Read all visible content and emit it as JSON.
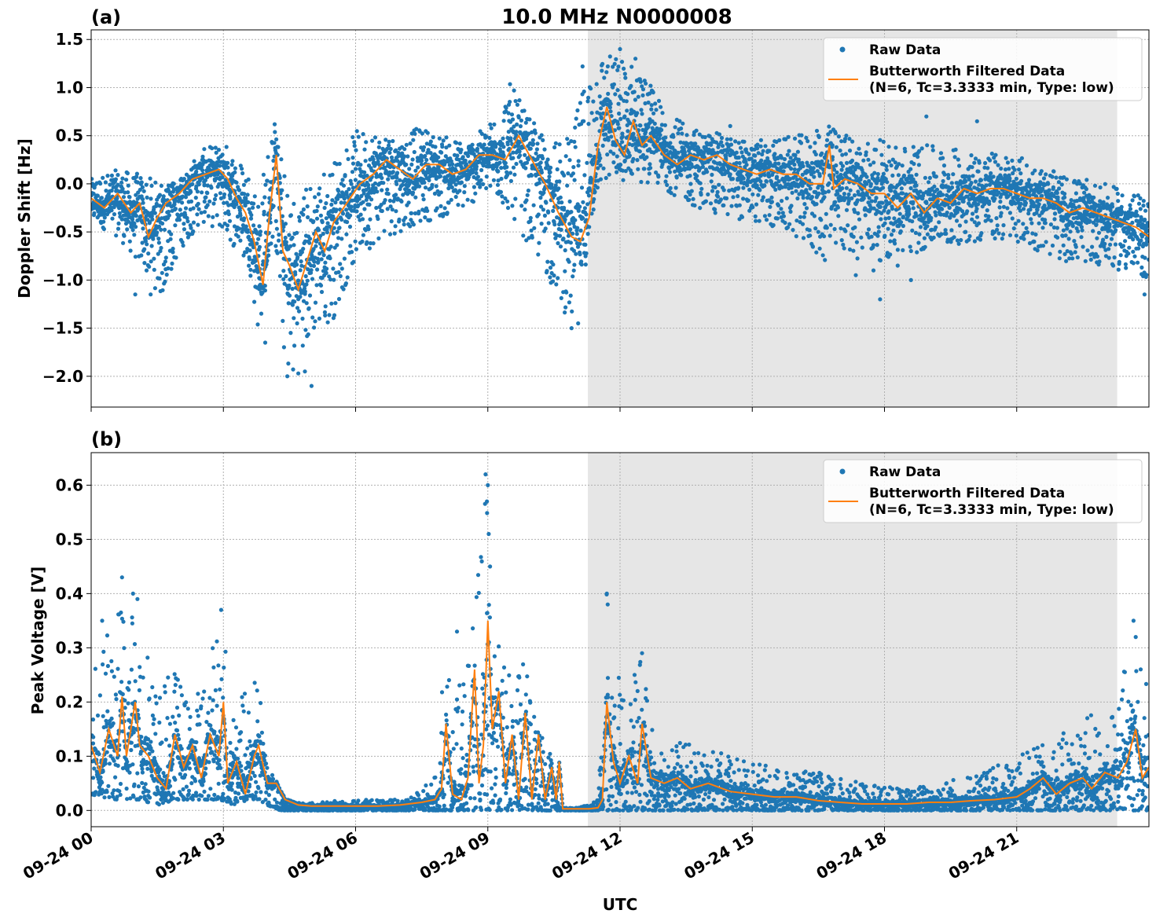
{
  "figure": {
    "title": "10.0 MHz N0000008",
    "xlabel": "UTC"
  },
  "colors": {
    "raw": "#1f77b4",
    "filtered": "#ff7f0e",
    "shade": "#e6e6e6",
    "grid": "#b0b0b0"
  },
  "chart_data": [
    {
      "type": "scatter",
      "panel_label": "(a)",
      "title": "10.0 MHz N0000008",
      "ylabel": "Doppler Shift [Hz]",
      "xlabel": "",
      "x_unit": "hours since 09-24 00 UTC",
      "xlim": [
        0,
        24
      ],
      "ylim": [
        -2.32,
        1.6
      ],
      "yticks": [
        1.5,
        1.0,
        0.5,
        0.0,
        -0.5,
        -1.0,
        -1.5,
        -2.0
      ],
      "ytick_labels": [
        "1.5",
        "1.0",
        "0.5",
        "0.0",
        "−0.5",
        "−1.0",
        "−1.5",
        "−2.0"
      ],
      "xticks": [
        0,
        3,
        6,
        9,
        12,
        15,
        18,
        21
      ],
      "xtick_labels": [
        "",
        "",
        "",
        "",
        "",
        "",
        "",
        ""
      ],
      "grid": true,
      "shaded_interval": [
        11.27,
        23.28
      ],
      "legend": {
        "placement": "top-right",
        "entries": [
          {
            "label": "Raw Data",
            "kind": "marker"
          },
          {
            "label": "Butterworth Filtered Data",
            "label2": "(N=6, Tc=3.3333 min, Type: low)",
            "kind": "line"
          }
        ]
      },
      "series": [
        {
          "name": "Raw Data",
          "kind": "band",
          "x": [
            0,
            0.6,
            1.2,
            1.6,
            2.0,
            2.5,
            3.0,
            3.6,
            3.8,
            4.15,
            4.4,
            4.6,
            5.0,
            5.5,
            6.0,
            6.5,
            7.0,
            7.5,
            8.0,
            8.5,
            9.0,
            9.5,
            10.0,
            10.5,
            10.9,
            11.2,
            11.5,
            11.8,
            12.2,
            12.6,
            13.0,
            13.5,
            14.0,
            15.0,
            16.0,
            16.8,
            17.0,
            17.5,
            18.0,
            19.0,
            20.0,
            21.0,
            22.0,
            23.0,
            24.0
          ],
          "hi": [
            0.05,
            0.15,
            0.1,
            0.0,
            0.05,
            0.35,
            0.45,
            0.15,
            -0.1,
            0.7,
            0.1,
            -0.1,
            0.05,
            0.25,
            0.55,
            0.6,
            0.5,
            0.6,
            0.5,
            0.45,
            0.6,
            1.05,
            0.65,
            0.45,
            0.5,
            1.1,
            1.4,
            1.35,
            1.3,
            1.1,
            0.8,
            0.6,
            0.55,
            0.45,
            0.5,
            0.6,
            0.55,
            0.5,
            0.45,
            0.4,
            0.35,
            0.3,
            0.1,
            0.0,
            -0.15
          ],
          "lo": [
            -0.4,
            -0.55,
            -0.9,
            -1.2,
            -0.7,
            -0.4,
            -0.5,
            -0.9,
            -1.6,
            -0.5,
            -1.9,
            -2.1,
            -1.6,
            -1.4,
            -0.8,
            -0.6,
            -0.5,
            -0.4,
            -0.35,
            -0.25,
            -0.1,
            -0.3,
            -0.7,
            -1.1,
            -1.5,
            -0.9,
            -0.1,
            -0.05,
            0.05,
            0.0,
            -0.05,
            -0.2,
            -0.3,
            -0.4,
            -0.55,
            -0.9,
            -0.7,
            -0.8,
            -0.8,
            -0.7,
            -0.6,
            -0.6,
            -0.8,
            -0.85,
            -1.0
          ],
          "outliers": [
            [
              1.0,
              -1.15
            ],
            [
              1.35,
              -1.15
            ],
            [
              3.95,
              -1.65
            ],
            [
              4.45,
              -2.0
            ],
            [
              4.85,
              -1.95
            ],
            [
              5.0,
              -2.1
            ],
            [
              10.9,
              -1.5
            ],
            [
              11.05,
              -1.45
            ],
            [
              11.15,
              1.22
            ],
            [
              12.0,
              1.4
            ],
            [
              12.35,
              1.3
            ],
            [
              14.5,
              0.6
            ],
            [
              16.5,
              0.5
            ],
            [
              17.35,
              -0.95
            ],
            [
              17.75,
              -0.9
            ],
            [
              17.9,
              -1.2
            ],
            [
              18.3,
              -0.85
            ],
            [
              18.6,
              -1.0
            ],
            [
              18.95,
              0.7
            ],
            [
              20.1,
              0.65
            ],
            [
              23.9,
              -1.15
            ]
          ]
        },
        {
          "name": "Butterworth Filtered Data",
          "kind": "line",
          "x": [
            0,
            0.3,
            0.6,
            0.9,
            1.1,
            1.3,
            1.5,
            1.7,
            2.0,
            2.3,
            2.6,
            2.9,
            3.1,
            3.3,
            3.5,
            3.7,
            3.9,
            4.05,
            4.2,
            4.35,
            4.5,
            4.7,
            4.9,
            5.1,
            5.3,
            5.5,
            5.8,
            6.1,
            6.4,
            6.7,
            7.0,
            7.3,
            7.6,
            7.9,
            8.2,
            8.5,
            8.8,
            9.1,
            9.4,
            9.7,
            10.0,
            10.3,
            10.6,
            10.9,
            11.1,
            11.3,
            11.5,
            11.7,
            11.9,
            12.1,
            12.3,
            12.5,
            12.7,
            13.0,
            13.3,
            13.6,
            13.9,
            14.2,
            14.5,
            14.8,
            15.1,
            15.4,
            15.7,
            16.0,
            16.3,
            16.6,
            16.75,
            16.85,
            17.1,
            17.4,
            17.7,
            18.0,
            18.3,
            18.6,
            18.9,
            19.2,
            19.5,
            19.8,
            20.1,
            20.4,
            20.7,
            21.0,
            21.3,
            21.6,
            21.9,
            22.2,
            22.5,
            22.8,
            23.1,
            23.4,
            23.7,
            24.0
          ],
          "values": [
            -0.15,
            -0.25,
            -0.1,
            -0.3,
            -0.2,
            -0.55,
            -0.35,
            -0.2,
            -0.1,
            0.05,
            0.1,
            0.15,
            0.05,
            -0.15,
            -0.3,
            -0.6,
            -1.05,
            -0.3,
            0.3,
            -0.7,
            -0.85,
            -1.1,
            -0.8,
            -0.5,
            -0.7,
            -0.4,
            -0.2,
            0.0,
            0.1,
            0.25,
            0.15,
            0.05,
            0.2,
            0.2,
            0.1,
            0.15,
            0.3,
            0.3,
            0.25,
            0.5,
            0.25,
            0.0,
            -0.3,
            -0.55,
            -0.6,
            -0.35,
            0.4,
            0.8,
            0.45,
            0.3,
            0.65,
            0.4,
            0.5,
            0.3,
            0.2,
            0.3,
            0.25,
            0.3,
            0.2,
            0.15,
            0.1,
            0.15,
            0.1,
            0.1,
            0.0,
            0.0,
            0.4,
            -0.05,
            0.05,
            0.0,
            -0.1,
            -0.1,
            -0.25,
            -0.1,
            -0.3,
            -0.15,
            -0.2,
            -0.05,
            -0.1,
            -0.05,
            -0.05,
            -0.1,
            -0.15,
            -0.15,
            -0.2,
            -0.3,
            -0.25,
            -0.3,
            -0.35,
            -0.4,
            -0.45,
            -0.55
          ]
        }
      ]
    },
    {
      "type": "scatter",
      "panel_label": "(b)",
      "title": "",
      "ylabel": "Peak Voltage [V]",
      "xlabel": "UTC",
      "x_unit": "hours since 09-24 00 UTC",
      "xlim": [
        0,
        24
      ],
      "ylim": [
        -0.03,
        0.66
      ],
      "yticks": [
        0.6,
        0.5,
        0.4,
        0.3,
        0.2,
        0.1,
        0.0
      ],
      "ytick_labels": [
        "0.6",
        "0.5",
        "0.4",
        "0.3",
        "0.2",
        "0.1",
        "0.0"
      ],
      "xticks": [
        0,
        3,
        6,
        9,
        12,
        15,
        18,
        21
      ],
      "xtick_labels": [
        "09-24 00",
        "09-24 03",
        "09-24 06",
        "09-24 09",
        "09-24 12",
        "09-24 15",
        "09-24 18",
        "09-24 21"
      ],
      "grid": true,
      "shaded_interval": [
        11.27,
        23.28
      ],
      "legend": {
        "placement": "top-right",
        "entries": [
          {
            "label": "Raw Data",
            "kind": "marker"
          },
          {
            "label": "Butterworth Filtered Data",
            "label2": "(N=6, Tc=3.3333 min, Type: low)",
            "kind": "line"
          }
        ]
      },
      "series": [
        {
          "name": "Raw Data",
          "kind": "band",
          "x": [
            0,
            0.5,
            0.8,
            1.1,
            1.5,
            1.9,
            2.2,
            2.6,
            2.9,
            3.2,
            3.6,
            3.8,
            4.0,
            4.3,
            4.6,
            5.0,
            6.0,
            7.0,
            7.5,
            7.9,
            8.0,
            8.2,
            8.6,
            8.8,
            9.0,
            9.2,
            9.5,
            9.8,
            10.0,
            10.3,
            10.5,
            10.6,
            10.75,
            11.0,
            11.5,
            11.7,
            11.9,
            12.2,
            12.5,
            12.8,
            13.2,
            13.8,
            14.5,
            15.5,
            16.5,
            17.5,
            18.5,
            19.5,
            20.5,
            21.5,
            22.2,
            22.6,
            23.0,
            23.3,
            23.6,
            24.0
          ],
          "hi": [
            0.28,
            0.36,
            0.43,
            0.4,
            0.22,
            0.27,
            0.2,
            0.25,
            0.38,
            0.22,
            0.26,
            0.25,
            0.1,
            0.02,
            0.02,
            0.015,
            0.02,
            0.02,
            0.04,
            0.07,
            0.37,
            0.17,
            0.33,
            0.45,
            0.63,
            0.32,
            0.25,
            0.28,
            0.23,
            0.14,
            0.1,
            0.01,
            0.005,
            0.005,
            0.02,
            0.41,
            0.26,
            0.22,
            0.29,
            0.16,
            0.13,
            0.12,
            0.1,
            0.08,
            0.07,
            0.05,
            0.04,
            0.06,
            0.08,
            0.12,
            0.15,
            0.18,
            0.16,
            0.2,
            0.35,
            0.23
          ],
          "lo": [
            0.03,
            0.02,
            0.02,
            0.02,
            0.01,
            0.02,
            0.02,
            0.02,
            0.02,
            0.01,
            0.02,
            0.02,
            0.01,
            0.0,
            0.0,
            0.0,
            0.0,
            0.0,
            0.0,
            0.0,
            0.0,
            0.0,
            0.0,
            0.0,
            0.0,
            0.0,
            0.0,
            0.0,
            0.0,
            0.0,
            0.0,
            0.0,
            0.0,
            0.0,
            0.0,
            0.0,
            0.0,
            0.0,
            0.0,
            0.0,
            0.0,
            0.0,
            0.0,
            0.0,
            0.0,
            0.0,
            0.0,
            0.0,
            0.0,
            0.0,
            0.0,
            0.0,
            0.0,
            0.0,
            0.0,
            0.0
          ],
          "outliers": [
            [
              0.25,
              0.35
            ],
            [
              0.7,
              0.43
            ],
            [
              0.95,
              0.4
            ],
            [
              1.05,
              0.39
            ],
            [
              2.95,
              0.37
            ],
            [
              8.95,
              0.62
            ],
            [
              9.0,
              0.6
            ],
            [
              8.98,
              0.57
            ],
            [
              9.02,
              0.51
            ],
            [
              9.05,
              0.45
            ],
            [
              8.3,
              0.33
            ],
            [
              11.7,
              0.4
            ],
            [
              11.72,
              0.38
            ],
            [
              12.5,
              0.29
            ],
            [
              23.65,
              0.35
            ],
            [
              23.7,
              0.32
            ]
          ]
        },
        {
          "name": "Butterworth Filtered Data",
          "kind": "line",
          "x": [
            0,
            0.2,
            0.4,
            0.6,
            0.7,
            0.8,
            1.0,
            1.1,
            1.3,
            1.5,
            1.7,
            1.9,
            2.1,
            2.3,
            2.5,
            2.7,
            2.9,
            3.0,
            3.1,
            3.3,
            3.5,
            3.7,
            3.8,
            4.0,
            4.2,
            4.4,
            4.7,
            5.0,
            5.5,
            6.0,
            6.5,
            7.0,
            7.5,
            7.8,
            7.95,
            8.05,
            8.2,
            8.4,
            8.55,
            8.7,
            8.8,
            8.9,
            9.0,
            9.1,
            9.25,
            9.4,
            9.55,
            9.7,
            9.85,
            10.0,
            10.15,
            10.3,
            10.45,
            10.55,
            10.62,
            10.7,
            11.0,
            11.3,
            11.5,
            11.6,
            11.7,
            11.85,
            12.0,
            12.2,
            12.4,
            12.5,
            12.7,
            13.0,
            13.3,
            13.6,
            14.0,
            14.5,
            15.0,
            15.5,
            16.0,
            16.5,
            17.0,
            17.5,
            18.0,
            18.5,
            19.0,
            19.5,
            20.0,
            20.5,
            21.0,
            21.3,
            21.6,
            21.9,
            22.2,
            22.5,
            22.7,
            23.0,
            23.3,
            23.5,
            23.7,
            23.85,
            24.0
          ],
          "values": [
            0.12,
            0.07,
            0.15,
            0.1,
            0.21,
            0.1,
            0.2,
            0.12,
            0.1,
            0.06,
            0.04,
            0.14,
            0.08,
            0.12,
            0.06,
            0.14,
            0.1,
            0.2,
            0.05,
            0.09,
            0.03,
            0.1,
            0.12,
            0.05,
            0.05,
            0.02,
            0.01,
            0.008,
            0.008,
            0.008,
            0.008,
            0.01,
            0.015,
            0.02,
            0.04,
            0.16,
            0.03,
            0.02,
            0.06,
            0.26,
            0.05,
            0.12,
            0.35,
            0.15,
            0.22,
            0.05,
            0.14,
            0.02,
            0.18,
            0.02,
            0.14,
            0.02,
            0.08,
            0.02,
            0.09,
            0.003,
            0.003,
            0.003,
            0.005,
            0.02,
            0.2,
            0.09,
            0.05,
            0.1,
            0.05,
            0.16,
            0.06,
            0.05,
            0.06,
            0.04,
            0.05,
            0.035,
            0.03,
            0.025,
            0.025,
            0.018,
            0.015,
            0.012,
            0.012,
            0.012,
            0.015,
            0.015,
            0.018,
            0.02,
            0.025,
            0.04,
            0.06,
            0.03,
            0.05,
            0.06,
            0.04,
            0.07,
            0.06,
            0.09,
            0.15,
            0.06,
            0.08
          ]
        }
      ]
    }
  ]
}
